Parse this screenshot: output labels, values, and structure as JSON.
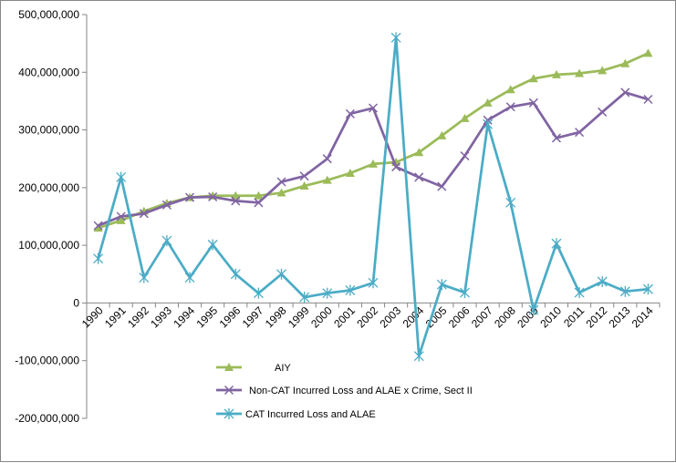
{
  "chart_data": {
    "type": "line",
    "title": "",
    "xlabel": "",
    "ylabel": "",
    "ylim": [
      -200000000,
      500000000
    ],
    "y_ticks": [
      500000000,
      400000000,
      300000000,
      200000000,
      100000000,
      0,
      -100000000,
      -200000000
    ],
    "y_tick_labels": [
      "500,000,000",
      "400,000,000",
      "300,000,000",
      "200,000,000",
      "100,000,000",
      "0",
      "-100,000,000",
      "-200,000,000"
    ],
    "grid": false,
    "legend_position": "bottom",
    "categories": [
      "1990",
      "1991",
      "1992",
      "1993",
      "1994",
      "1995",
      "1996",
      "1997",
      "1998",
      "1999",
      "2000",
      "2001",
      "2002",
      "2003",
      "2004",
      "2005",
      "2006",
      "2007",
      "2008",
      "2009",
      "2010",
      "2011",
      "2012",
      "2013",
      "2014"
    ],
    "series": [
      {
        "name": "AIY",
        "color": "#9BBB59",
        "marker": "triangle",
        "values": [
          130000000,
          143000000,
          159000000,
          173000000,
          183000000,
          186000000,
          186000000,
          186000000,
          191000000,
          203000000,
          213000000,
          225000000,
          241000000,
          244000000,
          261000000,
          290000000,
          320000000,
          347000000,
          370000000,
          389000000,
          396000000,
          398000000,
          403000000,
          415000000,
          433000000
        ]
      },
      {
        "name": "Non-CAT Incurred Loss and ALAE x  Crime, Sect II",
        "color": "#8064A2",
        "marker": "x",
        "values": [
          134000000,
          150000000,
          155000000,
          170000000,
          183000000,
          184000000,
          177000000,
          174000000,
          210000000,
          220000000,
          250000000,
          328000000,
          338000000,
          236000000,
          218000000,
          202000000,
          255000000,
          317000000,
          340000000,
          347000000,
          286000000,
          296000000,
          331000000,
          365000000,
          353000000
        ]
      },
      {
        "name": "CAT Incurred Loss and ALAE",
        "color": "#4BACC6",
        "marker": "star",
        "values": [
          77000000,
          218000000,
          44000000,
          108000000,
          44000000,
          101000000,
          50000000,
          17000000,
          50000000,
          10000000,
          17000000,
          22000000,
          35000000,
          460000000,
          -92000000,
          32000000,
          18000000,
          310000000,
          174000000,
          -12000000,
          103000000,
          18000000,
          37000000,
          20000000,
          24000000
        ]
      }
    ]
  }
}
